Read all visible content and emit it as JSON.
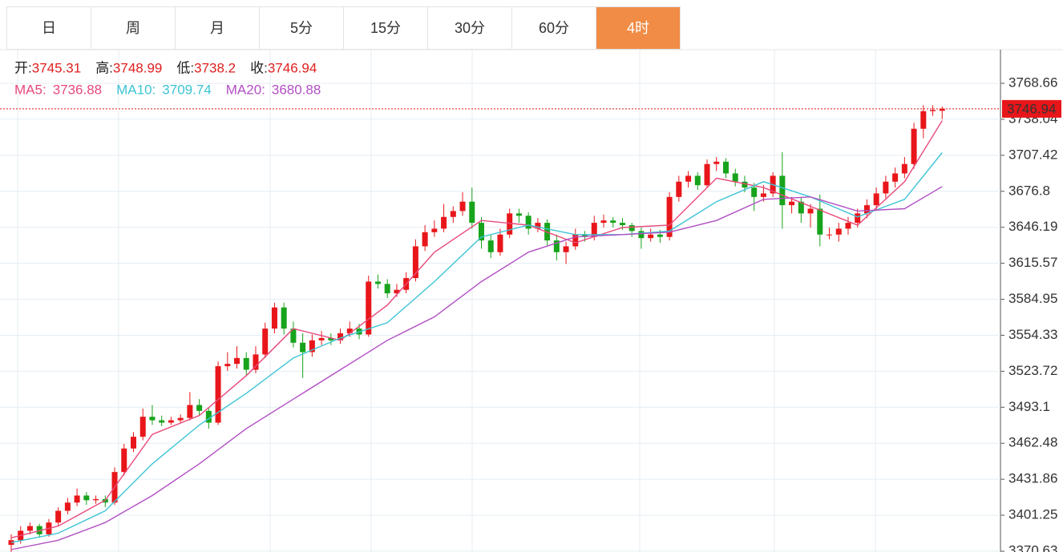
{
  "tabs": [
    "日",
    "周",
    "月",
    "5分",
    "15分",
    "30分",
    "60分",
    "4时"
  ],
  "active_tab": 7,
  "chart_data": {
    "type": "candlestick",
    "ohlc_labels": [
      "开:",
      "高:",
      "低:",
      "收:"
    ],
    "up_color": "#e8161a",
    "down_color": "#17a31b",
    "ylim": [
      3369.95,
      3797.29
    ],
    "yticks": [
      3370.63,
      3401.25,
      3431.86,
      3462.48,
      3493.1,
      3523.72,
      3554.33,
      3584.95,
      3615.57,
      3646.19,
      3676.8,
      3707.42,
      3738.04,
      3768.66
    ],
    "grid": true,
    "ohlc": [
      [
        3376,
        3385,
        3370,
        3380
      ],
      [
        3380,
        3392,
        3377,
        3388
      ],
      [
        3388,
        3395,
        3385,
        3392
      ],
      [
        3392,
        3394,
        3382,
        3385
      ],
      [
        3385,
        3398,
        3383,
        3395
      ],
      [
        3395,
        3408,
        3392,
        3405
      ],
      [
        3405,
        3416,
        3402,
        3412
      ],
      [
        3412,
        3424,
        3409,
        3418
      ],
      [
        3418,
        3421,
        3410,
        3414
      ],
      [
        3414,
        3418,
        3411,
        3415
      ],
      [
        3415,
        3418,
        3408,
        3412
      ],
      [
        3412,
        3442,
        3410,
        3438
      ],
      [
        3438,
        3462,
        3435,
        3458
      ],
      [
        3458,
        3472,
        3455,
        3468
      ],
      [
        3468,
        3492,
        3465,
        3485
      ],
      [
        3485,
        3495,
        3478,
        3482
      ],
      [
        3482,
        3486,
        3477,
        3480
      ],
      [
        3480,
        3485,
        3478,
        3482
      ],
      [
        3482,
        3487,
        3480,
        3484
      ],
      [
        3484,
        3506,
        3482,
        3495
      ],
      [
        3495,
        3500,
        3486,
        3490
      ],
      [
        3490,
        3493,
        3475,
        3480
      ],
      [
        3480,
        3532,
        3478,
        3528
      ],
      [
        3528,
        3540,
        3524,
        3530
      ],
      [
        3530,
        3545,
        3526,
        3535
      ],
      [
        3535,
        3540,
        3520,
        3525
      ],
      [
        3525,
        3545,
        3522,
        3538
      ],
      [
        3538,
        3565,
        3535,
        3560
      ],
      [
        3560,
        3582,
        3556,
        3578
      ],
      [
        3578,
        3582,
        3555,
        3560
      ],
      [
        3560,
        3566,
        3544,
        3548
      ],
      [
        3548,
        3556,
        3518,
        3540
      ],
      [
        3540,
        3555,
        3536,
        3550
      ],
      [
        3550,
        3558,
        3546,
        3552
      ],
      [
        3552,
        3556,
        3546,
        3550
      ],
      [
        3550,
        3560,
        3547,
        3556
      ],
      [
        3556,
        3566,
        3553,
        3560
      ],
      [
        3560,
        3564,
        3551,
        3555
      ],
      [
        3555,
        3605,
        3553,
        3600
      ],
      [
        3600,
        3606,
        3594,
        3598
      ],
      [
        3598,
        3602,
        3586,
        3590
      ],
      [
        3590,
        3598,
        3587,
        3593
      ],
      [
        3593,
        3608,
        3590,
        3603
      ],
      [
        3603,
        3636,
        3600,
        3630
      ],
      [
        3630,
        3648,
        3626,
        3642
      ],
      [
        3642,
        3652,
        3638,
        3645
      ],
      [
        3645,
        3666,
        3642,
        3655
      ],
      [
        3655,
        3664,
        3650,
        3660
      ],
      [
        3660,
        3676,
        3656,
        3668
      ],
      [
        3668,
        3680,
        3645,
        3650
      ],
      [
        3650,
        3655,
        3628,
        3635
      ],
      [
        3635,
        3640,
        3620,
        3625
      ],
      [
        3625,
        3645,
        3622,
        3640
      ],
      [
        3640,
        3662,
        3637,
        3658
      ],
      [
        3658,
        3662,
        3650,
        3656
      ],
      [
        3656,
        3659,
        3640,
        3645
      ],
      [
        3645,
        3654,
        3642,
        3650
      ],
      [
        3650,
        3653,
        3630,
        3635
      ],
      [
        3635,
        3640,
        3618,
        3625
      ],
      [
        3625,
        3634,
        3615,
        3630
      ],
      [
        3630,
        3645,
        3627,
        3640
      ],
      [
        3640,
        3643,
        3634,
        3638
      ],
      [
        3638,
        3656,
        3635,
        3650
      ],
      [
        3650,
        3657,
        3646,
        3652
      ],
      [
        3652,
        3655,
        3646,
        3650
      ],
      [
        3650,
        3654,
        3644,
        3648
      ],
      [
        3648,
        3650,
        3638,
        3643
      ],
      [
        3643,
        3646,
        3628,
        3637
      ],
      [
        3637,
        3645,
        3634,
        3640
      ],
      [
        3640,
        3644,
        3633,
        3638
      ],
      [
        3638,
        3676,
        3635,
        3672
      ],
      [
        3672,
        3690,
        3668,
        3685
      ],
      [
        3685,
        3694,
        3680,
        3690
      ],
      [
        3690,
        3693,
        3678,
        3682
      ],
      [
        3682,
        3704,
        3680,
        3700
      ],
      [
        3700,
        3706,
        3694,
        3702
      ],
      [
        3702,
        3705,
        3688,
        3692
      ],
      [
        3692,
        3696,
        3681,
        3685
      ],
      [
        3685,
        3690,
        3676,
        3680
      ],
      [
        3680,
        3684,
        3660,
        3672
      ],
      [
        3672,
        3682,
        3668,
        3675
      ],
      [
        3675,
        3693,
        3672,
        3690
      ],
      [
        3690,
        3710,
        3645,
        3665
      ],
      [
        3665,
        3672,
        3658,
        3668
      ],
      [
        3668,
        3672,
        3650,
        3658
      ],
      [
        3658,
        3666,
        3646,
        3662
      ],
      [
        3662,
        3674,
        3630,
        3640
      ],
      [
        3640,
        3646,
        3636,
        3640
      ],
      [
        3640,
        3650,
        3634,
        3645
      ],
      [
        3645,
        3655,
        3640,
        3650
      ],
      [
        3650,
        3662,
        3646,
        3658
      ],
      [
        3658,
        3670,
        3654,
        3665
      ],
      [
        3665,
        3680,
        3660,
        3675
      ],
      [
        3675,
        3690,
        3671,
        3685
      ],
      [
        3685,
        3697,
        3680,
        3692
      ],
      [
        3692,
        3706,
        3688,
        3700
      ],
      [
        3700,
        3735,
        3696,
        3730
      ],
      [
        3730,
        3750,
        3722,
        3745
      ],
      [
        3745,
        3750,
        3741,
        3746
      ],
      [
        3745.31,
        3748.99,
        3738.2,
        3746.94
      ]
    ],
    "series": [
      {
        "name": "MA5:",
        "color": "#e8497b",
        "x": [
          0,
          5,
          10,
          15,
          20,
          25,
          30,
          35,
          40,
          45,
          50,
          55,
          60,
          65,
          70,
          75,
          80,
          85,
          90,
          95,
          99
        ],
        "values": [
          3382,
          3392,
          3414,
          3470,
          3486,
          3520,
          3560,
          3550,
          3580,
          3625,
          3652,
          3648,
          3633,
          3646,
          3648,
          3688,
          3680,
          3664,
          3648,
          3685,
          3736.88
        ]
      },
      {
        "name": "MA10:",
        "color": "#3cc4d4",
        "x": [
          0,
          5,
          10,
          15,
          20,
          25,
          30,
          35,
          40,
          45,
          50,
          55,
          60,
          65,
          70,
          75,
          80,
          85,
          90,
          95,
          99
        ],
        "values": [
          3378,
          3386,
          3405,
          3445,
          3478,
          3505,
          3535,
          3552,
          3565,
          3600,
          3638,
          3648,
          3640,
          3640,
          3643,
          3668,
          3685,
          3672,
          3655,
          3670,
          3709.74
        ]
      },
      {
        "name": "MA20:",
        "color": "#b24fc4",
        "x": [
          0,
          5,
          10,
          15,
          20,
          25,
          30,
          35,
          40,
          45,
          50,
          55,
          60,
          65,
          70,
          75,
          80,
          85,
          90,
          95,
          99
        ],
        "values": [
          3372,
          3380,
          3395,
          3418,
          3445,
          3475,
          3500,
          3525,
          3550,
          3570,
          3600,
          3625,
          3638,
          3640,
          3642,
          3652,
          3670,
          3672,
          3660,
          3662,
          3680.88
        ]
      }
    ]
  }
}
